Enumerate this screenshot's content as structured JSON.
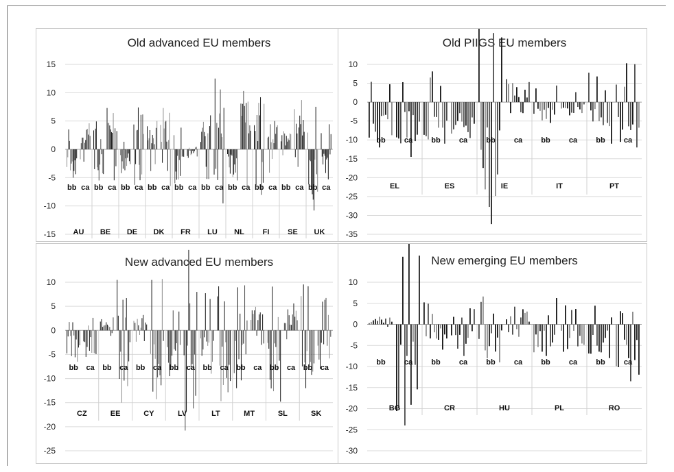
{
  "chart_data": [
    {
      "type": "bar",
      "title": "Old advanced EU members",
      "ylim": [
        -15,
        15
      ],
      "yticks": [
        15,
        10,
        5,
        0,
        -5,
        -10,
        -15
      ],
      "sublabels": [
        "bb",
        "ca"
      ],
      "groups": [
        {
          "name": "AU",
          "bb_peak": -5,
          "ca_peak": 4.6
        },
        {
          "name": "BE",
          "bb_peak": -5.5,
          "ca_peak": 7.3
        },
        {
          "name": "DE",
          "bb_peak": -4.2,
          "ca_peak": 7.4
        },
        {
          "name": "DK",
          "bb_peak": 5,
          "ca_peak": 7.3
        },
        {
          "name": "FR",
          "bb_peak": -6,
          "ca_peak": -1.5
        },
        {
          "name": "LU",
          "bb_peak": 6,
          "ca_peak": 12.5
        },
        {
          "name": "NL",
          "bb_peak": -5.5,
          "ca_peak": 10.3
        },
        {
          "name": "FI",
          "bb_peak": 9.2,
          "ca_peak": 5
        },
        {
          "name": "SE",
          "bb_peak": 3.2,
          "ca_peak": 8.7
        },
        {
          "name": "UK",
          "bb_peak": -10.8,
          "ca_peak": -5.3
        }
      ]
    },
    {
      "type": "bar",
      "title": "Old PIIGS EU members",
      "ylim": [
        -35,
        10
      ],
      "yticks": [
        10,
        5,
        0,
        -5,
        -10,
        -15,
        -20,
        -25,
        -30,
        -35
      ],
      "sublabels": [
        "bb",
        "ca"
      ],
      "groups": [
        {
          "name": "EL",
          "bb_peak": -12,
          "ca_peak": -14.5
        },
        {
          "name": "ES",
          "bb_peak": -11,
          "ca_peak": -9.5
        },
        {
          "name": "IE",
          "bb_peak": -32.3,
          "ca_peak": 6.1
        },
        {
          "name": "IT",
          "bb_peak": -5.5,
          "ca_peak": -3.5
        },
        {
          "name": "PT",
          "bb_peak": -11,
          "ca_peak": -12
        }
      ]
    },
    {
      "type": "bar",
      "title": "New advanced EU members",
      "ylim": [
        -25,
        10
      ],
      "yticks": [
        10,
        5,
        0,
        -5,
        -10,
        -15,
        -20,
        -25
      ],
      "sublabels": [
        "bb",
        "ca"
      ],
      "groups": [
        {
          "name": "CZ",
          "bb_peak": -6.5,
          "ca_peak": -5.5
        },
        {
          "name": "EE",
          "bb_peak": 2.7,
          "ca_peak": -15
        },
        {
          "name": "CY",
          "bb_peak": 3.2,
          "ca_peak": -14.3
        },
        {
          "name": "LV",
          "bb_peak": -9.5,
          "ca_peak": -20.8
        },
        {
          "name": "LT",
          "bb_peak": -9,
          "ca_peak": -14.7
        },
        {
          "name": "MT",
          "bb_peak": -12,
          "ca_peak": 4.9
        },
        {
          "name": "SL",
          "bb_peak": -14.8,
          "ca_peak": 5.6
        },
        {
          "name": "SK",
          "bb_peak": -12,
          "ca_peak": -8
        }
      ]
    },
    {
      "type": "bar",
      "title": "New emerging EU members",
      "ylim": [
        -30,
        10
      ],
      "yticks": [
        10,
        5,
        0,
        -5,
        -10,
        -15,
        -20,
        -25,
        -30
      ],
      "sublabels": [
        "bb",
        "ca"
      ],
      "groups": [
        {
          "name": "BG",
          "bb_peak": 1.8,
          "ca_peak": -24
        },
        {
          "name": "CR",
          "bb_peak": -6,
          "ca_peak": -7.5
        },
        {
          "name": "HU",
          "bb_peak": -9,
          "ca_peak": 4.2
        },
        {
          "name": "PL",
          "bb_peak": -7.5,
          "ca_peak": -6.5
        },
        {
          "name": "RO",
          "bb_peak": -8,
          "ca_peak": -13.5
        }
      ]
    }
  ]
}
